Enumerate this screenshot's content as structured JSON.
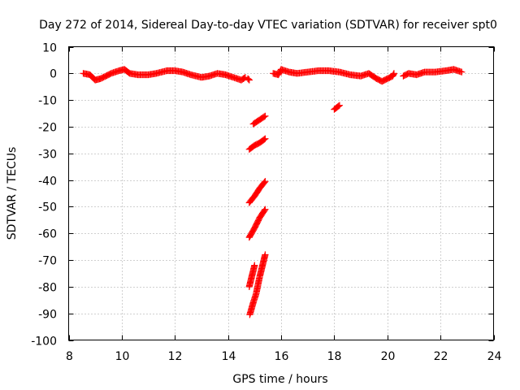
{
  "chart_data": {
    "type": "scatter",
    "title": "Day 272 of 2014, Sidereal Day-to-day VTEC variation (SDTVAR) for receiver spt0",
    "xlabel": "GPS time / hours",
    "ylabel": "SDTVAR / TECUs",
    "xlim": [
      8,
      24
    ],
    "ylim": [
      -100,
      10
    ],
    "xticks": [
      8,
      10,
      12,
      14,
      16,
      18,
      20,
      22,
      24
    ],
    "yticks": [
      10,
      0,
      -10,
      -20,
      -30,
      -40,
      -50,
      -60,
      -70,
      -80,
      -90,
      -100
    ],
    "grid": true,
    "marker": "plus",
    "color": "#ff0000",
    "series": [
      {
        "segments": [
          {
            "points": [
              [
                8.55,
                0
              ],
              [
                8.8,
                -0.5
              ],
              [
                9.0,
                -2.5
              ],
              [
                9.2,
                -2
              ],
              [
                9.4,
                -1
              ],
              [
                9.6,
                0
              ],
              [
                9.9,
                1
              ],
              [
                10.1,
                1.5
              ],
              [
                10.3,
                0
              ],
              [
                10.6,
                -0.5
              ],
              [
                11.0,
                -0.5
              ],
              [
                11.3,
                0
              ],
              [
                11.7,
                1
              ],
              [
                12.0,
                1
              ],
              [
                12.3,
                0.5
              ],
              [
                12.6,
                -0.5
              ],
              [
                13.0,
                -1.5
              ],
              [
                13.3,
                -1
              ],
              [
                13.6,
                0
              ],
              [
                13.9,
                -0.5
              ],
              [
                14.2,
                -1.5
              ],
              [
                14.5,
                -2.5
              ],
              [
                14.65,
                -1.5
              ]
            ]
          },
          {
            "points": [
              [
                14.75,
                -2
              ],
              [
                14.8,
                -2.5
              ]
            ]
          },
          {
            "points": [
              [
                15.7,
                0
              ],
              [
                15.9,
                -0.5
              ],
              [
                16.0,
                1.5
              ],
              [
                16.3,
                0.5
              ],
              [
                16.6,
                0
              ],
              [
                17.0,
                0.5
              ],
              [
                17.4,
                1
              ],
              [
                17.8,
                1
              ],
              [
                18.2,
                0.5
              ],
              [
                18.6,
                -0.5
              ],
              [
                19.0,
                -1
              ],
              [
                19.3,
                0
              ],
              [
                19.6,
                -2
              ],
              [
                19.8,
                -3
              ],
              [
                20.0,
                -2
              ],
              [
                20.2,
                -1
              ],
              [
                20.25,
                0
              ]
            ]
          },
          {
            "points": [
              [
                20.6,
                -1
              ],
              [
                20.8,
                0
              ],
              [
                21.1,
                -0.5
              ],
              [
                21.4,
                0.5
              ],
              [
                21.8,
                0.5
              ],
              [
                22.2,
                1
              ],
              [
                22.5,
                1.5
              ],
              [
                22.8,
                0.5
              ]
            ]
          },
          {
            "points": [
              [
                18.0,
                -13.5
              ],
              [
                18.2,
                -12
              ]
            ]
          },
          {
            "points": [
              [
                14.95,
                -19
              ],
              [
                15.1,
                -18
              ],
              [
                15.4,
                -16
              ]
            ]
          },
          {
            "points": [
              [
                14.8,
                -28.5
              ],
              [
                15.0,
                -27
              ],
              [
                15.2,
                -26
              ],
              [
                15.4,
                -24.5
              ]
            ]
          },
          {
            "points": [
              [
                14.8,
                -48.5
              ],
              [
                15.0,
                -46
              ],
              [
                15.2,
                -43
              ],
              [
                15.4,
                -40.5
              ]
            ]
          },
          {
            "points": [
              [
                14.8,
                -61.5
              ],
              [
                15.0,
                -58
              ],
              [
                15.2,
                -54
              ],
              [
                15.4,
                -51
              ]
            ]
          },
          {
            "points": [
              [
                14.8,
                -80
              ],
              [
                14.9,
                -76
              ],
              [
                15.0,
                -72
              ]
            ]
          },
          {
            "points": [
              [
                14.82,
                -90.5
              ],
              [
                14.95,
                -86
              ],
              [
                15.05,
                -83
              ],
              [
                15.2,
                -76
              ],
              [
                15.3,
                -72
              ],
              [
                15.4,
                -68
              ]
            ]
          }
        ]
      }
    ]
  }
}
